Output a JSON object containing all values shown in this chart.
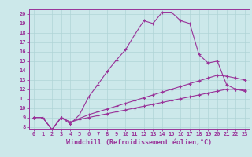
{
  "xlabel": "Windchill (Refroidissement éolien,°C)",
  "bg_color": "#cce8ea",
  "line_color": "#993399",
  "x_ticks": [
    0,
    1,
    2,
    3,
    4,
    5,
    6,
    7,
    8,
    9,
    10,
    11,
    12,
    13,
    14,
    15,
    16,
    17,
    18,
    19,
    20,
    21,
    22,
    23
  ],
  "y_ticks": [
    8,
    9,
    10,
    11,
    12,
    13,
    14,
    15,
    16,
    17,
    18,
    19,
    20
  ],
  "ylim": [
    7.8,
    20.5
  ],
  "xlim": [
    -0.5,
    23.5
  ],
  "series1_y": [
    9.0,
    9.0,
    7.7,
    9.0,
    8.3,
    9.3,
    11.2,
    12.5,
    13.9,
    15.1,
    16.2,
    17.8,
    19.3,
    19.0,
    20.2,
    20.2,
    19.3,
    19.0,
    15.7,
    14.8,
    15.0,
    12.5,
    12.0,
    11.8
  ],
  "series2_y": [
    9.0,
    9.0,
    7.7,
    9.0,
    8.5,
    8.8,
    9.0,
    9.2,
    9.4,
    9.6,
    9.8,
    10.0,
    10.2,
    10.4,
    10.6,
    10.8,
    11.0,
    11.2,
    11.4,
    11.6,
    11.8,
    12.0,
    12.0,
    11.9
  ],
  "series3_y": [
    9.0,
    9.0,
    7.7,
    9.0,
    8.5,
    8.9,
    9.3,
    9.6,
    9.9,
    10.2,
    10.5,
    10.8,
    11.1,
    11.4,
    11.7,
    12.0,
    12.3,
    12.6,
    12.9,
    13.2,
    13.5,
    13.4,
    13.2,
    13.0
  ],
  "grid_color": "#b0d4d6",
  "tick_fontsize": 5,
  "label_fontsize": 6,
  "marker": "+"
}
